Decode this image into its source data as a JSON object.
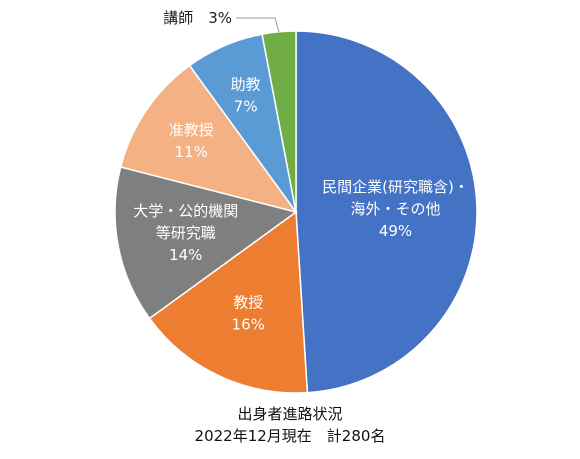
{
  "chart_data": {
    "type": "pie",
    "categories": [
      "民間企業(研究職含)・海外・その他",
      "教授",
      "大学・公的機関等研究職",
      "准教授",
      "助教",
      "講師"
    ],
    "values": [
      49,
      16,
      14,
      11,
      7,
      3
    ],
    "value_labels": [
      "49%",
      "16%",
      "14%",
      "11%",
      "7%",
      "3%"
    ],
    "slice_labels": [
      [
        "民間企業(研究職含)・",
        "海外・その他",
        "49%"
      ],
      [
        "教授",
        "16%"
      ],
      [
        "大学・公的機関",
        "等研究職",
        "14%"
      ],
      [
        "准教授",
        "11%"
      ],
      [
        "助教",
        "7%"
      ],
      [
        "講師　3%"
      ]
    ],
    "colors": [
      "#4472C4",
      "#ED7D31",
      "#7F7F7F",
      "#F4B183",
      "#5B9BD5",
      "#70AD47"
    ],
    "caption": [
      "出身者進路状況",
      "2022年12月現在　計280名"
    ]
  }
}
